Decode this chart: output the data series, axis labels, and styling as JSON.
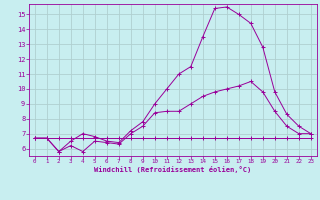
{
  "xlabel": "Windchill (Refroidissement éolien,°C)",
  "background_color": "#c8eef0",
  "grid_color": "#b0d0d0",
  "line_color": "#990099",
  "spine_color": "#884488",
  "xlim": [
    -0.5,
    23.5
  ],
  "ylim": [
    5.5,
    15.7
  ],
  "xticks": [
    0,
    1,
    2,
    3,
    4,
    5,
    6,
    7,
    8,
    9,
    10,
    11,
    12,
    13,
    14,
    15,
    16,
    17,
    18,
    19,
    20,
    21,
    22,
    23
  ],
  "yticks": [
    6,
    7,
    8,
    9,
    10,
    11,
    12,
    13,
    14,
    15
  ],
  "series": [
    {
      "x": [
        0,
        1,
        2,
        3,
        4,
        5,
        6,
        7,
        8,
        9,
        10,
        11,
        12,
        13,
        14,
        15,
        16,
        17,
        18,
        19,
        20,
        21,
        22,
        23
      ],
      "y": [
        6.7,
        6.7,
        6.7,
        6.7,
        6.7,
        6.7,
        6.7,
        6.7,
        6.7,
        6.7,
        6.7,
        6.7,
        6.7,
        6.7,
        6.7,
        6.7,
        6.7,
        6.7,
        6.7,
        6.7,
        6.7,
        6.7,
        6.7,
        6.7
      ]
    },
    {
      "x": [
        0,
        1,
        2,
        3,
        4,
        5,
        6,
        7,
        8,
        9,
        10,
        11,
        12,
        13,
        14,
        15,
        16,
        17,
        18,
        19,
        20,
        21,
        22,
        23
      ],
      "y": [
        6.7,
        6.7,
        5.8,
        6.2,
        5.8,
        6.5,
        6.4,
        6.3,
        7.0,
        7.5,
        8.4,
        8.5,
        8.5,
        9.0,
        9.5,
        9.8,
        10.0,
        10.2,
        10.5,
        9.8,
        8.5,
        7.5,
        7.0,
        7.0
      ]
    },
    {
      "x": [
        0,
        1,
        2,
        3,
        4,
        5,
        6,
        7,
        8,
        9,
        10,
        11,
        12,
        13,
        14,
        15,
        16,
        17,
        18,
        19,
        20,
        21,
        22,
        23
      ],
      "y": [
        6.7,
        6.7,
        5.8,
        6.5,
        7.0,
        6.8,
        6.5,
        6.4,
        7.2,
        7.8,
        9.0,
        10.0,
        11.0,
        11.5,
        13.5,
        15.4,
        15.5,
        15.0,
        14.4,
        12.8,
        9.8,
        8.3,
        7.5,
        7.0
      ]
    }
  ]
}
